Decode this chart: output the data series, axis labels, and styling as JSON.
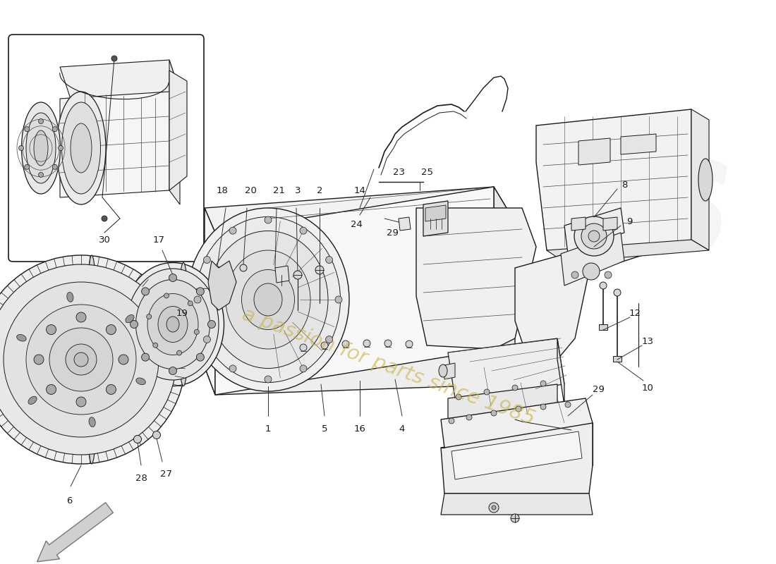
{
  "bg": "#ffffff",
  "lc": "#1a1a1a",
  "lc_light": "#666666",
  "lc_mid": "#444444",
  "watermark_text_color": "#c8b040",
  "watermark_logo_color": "#d8d8d8",
  "lw_main": 1.0,
  "lw_thin": 0.6,
  "lw_med": 0.8,
  "label_fontsize": 9.5,
  "watermark_text": "a passion for parts since 1985",
  "parts": [
    "1",
    "2",
    "3",
    "4",
    "5",
    "6",
    "8",
    "9",
    "10",
    "12",
    "13",
    "14",
    "16",
    "17",
    "18",
    "19",
    "20",
    "21",
    "23",
    "24",
    "25",
    "27",
    "28",
    "29",
    "30"
  ]
}
